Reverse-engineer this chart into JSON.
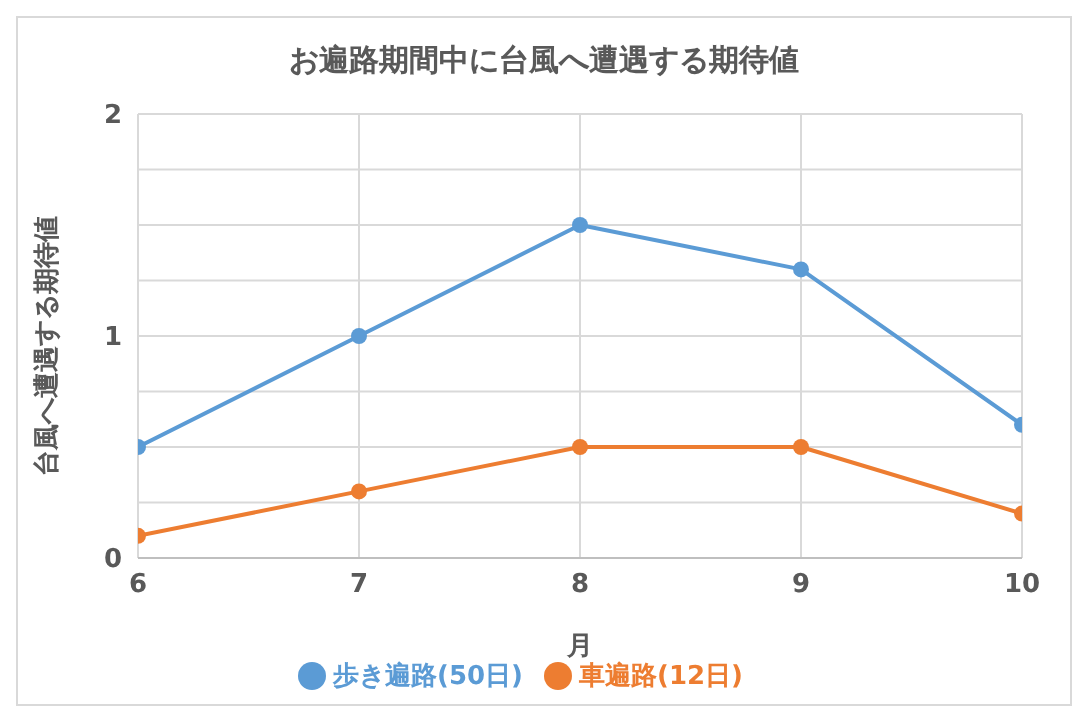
{
  "chart_data": {
    "type": "line",
    "title": "お遍路期間中に台風へ遭遇する期待値",
    "xlabel": "月",
    "ylabel": "台風へ遭遇する期待値",
    "x": [
      6,
      7,
      8,
      9,
      10
    ],
    "series": [
      {
        "name": "歩き遍路(50日)",
        "color": "#5b9bd5",
        "values": [
          0.5,
          1,
          1.5,
          1.3,
          0.6
        ]
      },
      {
        "name": "車遍路(12日)",
        "color": "#ed7d31",
        "values": [
          0.1,
          0.3,
          0.5,
          0.5,
          0.2
        ]
      }
    ],
    "xlim": [
      6,
      10
    ],
    "xticks": [
      6,
      7,
      8,
      9,
      10
    ],
    "ylim": [
      0,
      2
    ],
    "yticks": [
      0,
      {
        "value": 0.25,
        "label": null
      },
      {
        "value": 0.5,
        "label": null
      },
      {
        "value": 0.75,
        "label": null
      },
      1,
      {
        "value": 1.25,
        "label": null
      },
      {
        "value": 1.5,
        "label": null
      },
      {
        "value": 1.75,
        "label": null
      },
      2
    ],
    "grid": true,
    "legend": "bottom",
    "marker": "circle",
    "line_style": "solid"
  }
}
